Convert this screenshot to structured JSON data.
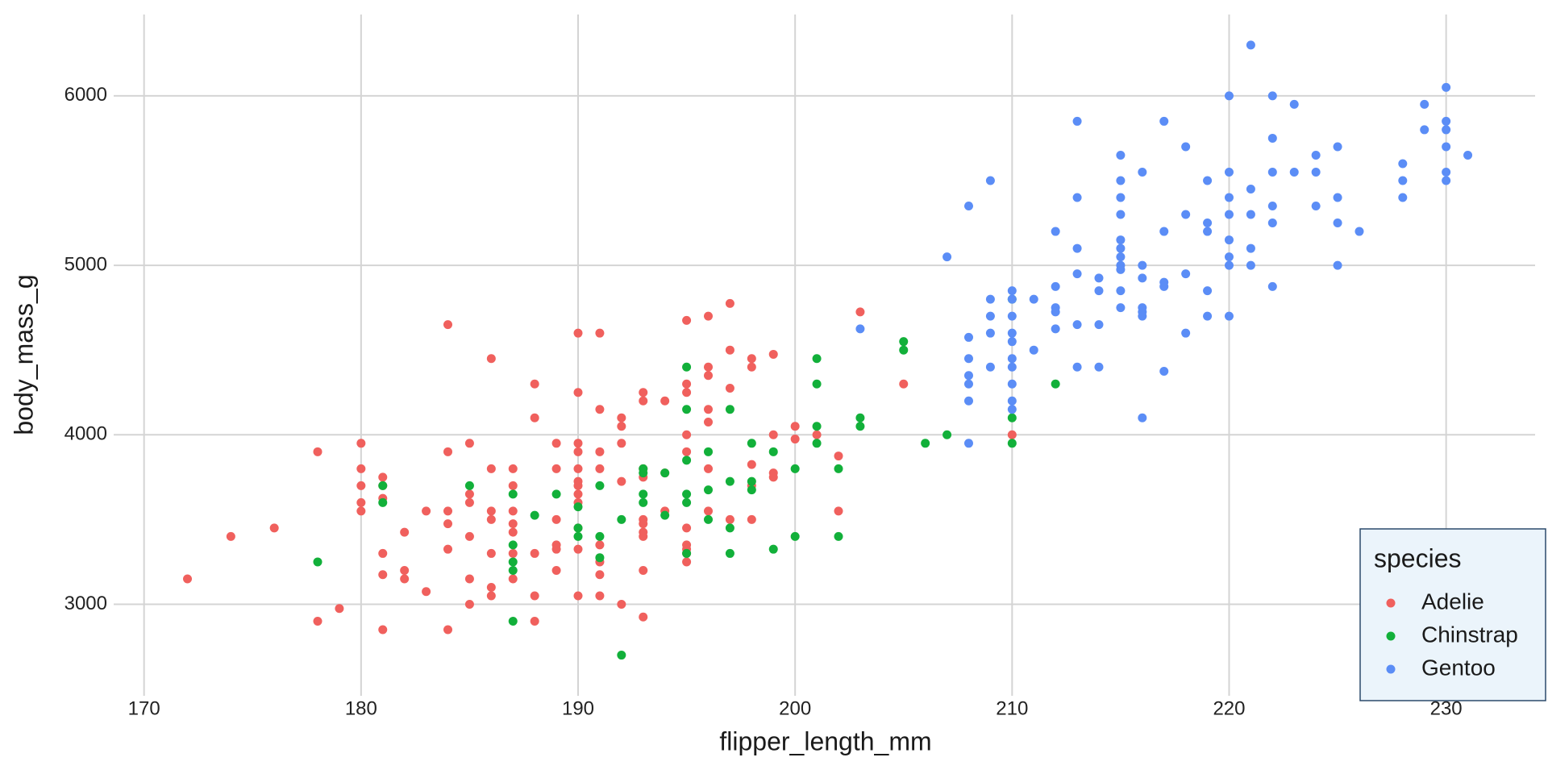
{
  "chart_data": {
    "type": "scatter",
    "xlabel": "flipper_length_mm",
    "ylabel": "body_mass_g",
    "xlim": [
      168.6,
      234.1
    ],
    "ylim": [
      2460,
      6480
    ],
    "xticks": [
      170,
      180,
      190,
      200,
      210,
      220,
      230
    ],
    "yticks": [
      3000,
      4000,
      5000,
      6000
    ],
    "grid": true,
    "legend_title": "species",
    "legend_position": "bottom-right",
    "series": [
      {
        "name": "Adelie",
        "color": "#F0605D",
        "x": [
          172,
          174,
          176,
          178,
          178,
          179,
          180,
          180,
          180,
          180,
          180,
          181,
          181,
          181,
          181,
          181,
          181,
          182,
          182,
          182,
          183,
          183,
          184,
          184,
          184,
          184,
          184,
          184,
          185,
          185,
          185,
          185,
          185,
          185,
          186,
          186,
          186,
          186,
          186,
          186,
          186,
          187,
          187,
          187,
          187,
          187,
          187,
          187,
          188,
          188,
          188,
          188,
          188,
          189,
          189,
          189,
          189,
          189,
          189,
          190,
          190,
          190,
          190,
          190,
          190,
          190,
          190,
          190,
          190,
          190,
          190,
          191,
          191,
          191,
          191,
          191,
          191,
          191,
          191,
          192,
          192,
          192,
          192,
          192,
          193,
          193,
          193,
          193,
          193,
          193,
          193,
          193,
          193,
          193,
          194,
          194,
          194,
          195,
          195,
          195,
          195,
          195,
          195,
          195,
          195,
          195,
          195,
          196,
          196,
          196,
          196,
          196,
          196,
          196,
          197,
          197,
          197,
          197,
          198,
          198,
          198,
          198,
          198,
          199,
          199,
          199,
          199,
          200,
          200,
          201,
          202,
          202,
          203,
          205,
          210
        ],
        "y": [
          3150,
          3400,
          3450,
          3900,
          2900,
          2975,
          3950,
          3800,
          3700,
          3600,
          3550,
          3750,
          3700,
          3625,
          3300,
          3175,
          2850,
          3425,
          3200,
          3150,
          3550,
          3075,
          4650,
          3900,
          3550,
          3475,
          3325,
          2850,
          3950,
          3650,
          3600,
          3400,
          3150,
          3000,
          4450,
          3800,
          3550,
          3500,
          3300,
          3100,
          3050,
          3800,
          3700,
          3550,
          3475,
          3425,
          3300,
          3150,
          4300,
          4100,
          3300,
          3050,
          2900,
          3950,
          3800,
          3500,
          3350,
          3325,
          3200,
          4600,
          4250,
          3950,
          3900,
          3800,
          3725,
          3700,
          3650,
          3600,
          3450,
          3325,
          3050,
          4600,
          4150,
          3900,
          3800,
          3350,
          3250,
          3175,
          3050,
          4100,
          4050,
          3950,
          3725,
          3000,
          4250,
          4200,
          3800,
          3750,
          3500,
          3475,
          3425,
          3400,
          3200,
          2925,
          4200,
          3775,
          3550,
          4675,
          4300,
          4250,
          4000,
          3900,
          3450,
          3350,
          3325,
          3300,
          3250,
          4700,
          4400,
          4350,
          4150,
          4075,
          3800,
          3550,
          4775,
          4500,
          4275,
          3500,
          4450,
          4400,
          3825,
          3700,
          3500,
          4475,
          4000,
          3775,
          3750,
          4050,
          3975,
          4000,
          3875,
          3550,
          4725,
          4300,
          4000
        ]
      },
      {
        "name": "Chinstrap",
        "color": "#12B03A",
        "x": [
          178,
          181,
          181,
          185,
          187,
          187,
          187,
          187,
          187,
          188,
          189,
          190,
          190,
          190,
          191,
          191,
          191,
          192,
          192,
          193,
          193,
          193,
          193,
          194,
          194,
          195,
          195,
          195,
          195,
          195,
          195,
          196,
          196,
          196,
          197,
          197,
          197,
          197,
          198,
          198,
          198,
          199,
          199,
          200,
          200,
          201,
          201,
          201,
          201,
          202,
          202,
          203,
          203,
          205,
          205,
          206,
          207,
          210,
          210,
          210,
          212
        ],
        "y": [
          3250,
          3700,
          3600,
          3700,
          3650,
          3350,
          3250,
          3200,
          2900,
          3525,
          3650,
          3575,
          3450,
          3400,
          3700,
          3400,
          3275,
          3500,
          2700,
          3800,
          3775,
          3650,
          3600,
          3775,
          3525,
          4400,
          4150,
          3850,
          3650,
          3600,
          3300,
          3900,
          3675,
          3500,
          4150,
          3725,
          3450,
          3300,
          3950,
          3725,
          3675,
          3900,
          3325,
          3800,
          3400,
          4450,
          4300,
          4050,
          3950,
          3800,
          3400,
          4100,
          4050,
          4550,
          4500,
          3950,
          4000,
          4800,
          4100,
          3950,
          4300
        ]
      },
      {
        "name": "Gentoo",
        "color": "#5B8DF6",
        "x": [
          203,
          207,
          208,
          208,
          208,
          208,
          208,
          208,
          208,
          209,
          209,
          209,
          209,
          209,
          210,
          210,
          210,
          210,
          210,
          210,
          210,
          210,
          210,
          210,
          211,
          211,
          212,
          212,
          212,
          212,
          212,
          213,
          213,
          213,
          213,
          213,
          213,
          214,
          214,
          214,
          214,
          215,
          215,
          215,
          215,
          215,
          215,
          215,
          215,
          215,
          215,
          215,
          216,
          216,
          216,
          216,
          216,
          216,
          216,
          217,
          217,
          217,
          217,
          217,
          218,
          218,
          218,
          218,
          219,
          219,
          219,
          219,
          219,
          220,
          220,
          220,
          220,
          220,
          220,
          220,
          220,
          221,
          221,
          221,
          221,
          221,
          222,
          222,
          222,
          222,
          222,
          222,
          223,
          223,
          224,
          224,
          224,
          225,
          225,
          225,
          225,
          226,
          228,
          228,
          228,
          229,
          229,
          230,
          230,
          230,
          230,
          230,
          230,
          231
        ],
        "y": [
          4625,
          5050,
          5350,
          4575,
          4450,
          4350,
          4300,
          4200,
          3950,
          5500,
          4800,
          4700,
          4600,
          4400,
          4850,
          4800,
          4700,
          4600,
          4550,
          4450,
          4400,
          4300,
          4200,
          4150,
          4800,
          4500,
          5200,
          4875,
          4750,
          4725,
          4625,
          5850,
          5400,
          5100,
          4950,
          4650,
          4400,
          4925,
          4850,
          4650,
          4400,
          5650,
          5500,
          5400,
          5300,
          5150,
          5100,
          5050,
          5000,
          4975,
          4850,
          4750,
          5550,
          5000,
          4925,
          4750,
          4725,
          4700,
          4100,
          5850,
          5200,
          4900,
          4875,
          4375,
          5700,
          5300,
          4950,
          4600,
          5500,
          5250,
          5200,
          4850,
          4700,
          6000,
          5550,
          5400,
          5300,
          5150,
          5050,
          5000,
          4700,
          6300,
          5450,
          5300,
          5100,
          5000,
          6000,
          5750,
          5550,
          5350,
          5250,
          4875,
          5950,
          5550,
          5650,
          5550,
          5350,
          5700,
          5400,
          5250,
          5000,
          5200,
          5600,
          5500,
          5400,
          5950,
          5800,
          6050,
          5850,
          5800,
          5700,
          5550,
          5500,
          5650
        ]
      }
    ]
  }
}
